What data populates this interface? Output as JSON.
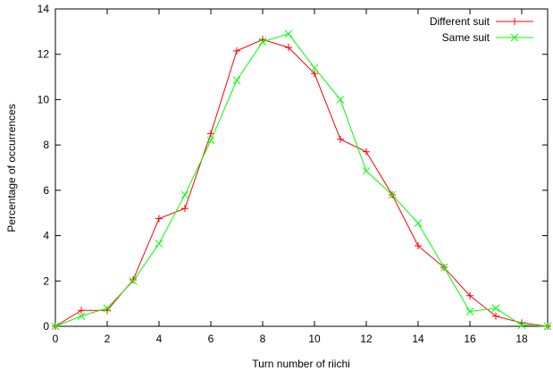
{
  "chart_data": {
    "type": "line",
    "title": "",
    "xlabel": "Turn number of riichi",
    "ylabel": "Percentage of occurrences",
    "xlim": [
      0,
      19
    ],
    "ylim": [
      0,
      14
    ],
    "x_ticks": [
      "0",
      "2",
      "4",
      "6",
      "8",
      "10",
      "12",
      "14",
      "16",
      "18"
    ],
    "y_ticks": [
      "0",
      "2",
      "4",
      "6",
      "8",
      "10",
      "12",
      "14"
    ],
    "grid": false,
    "legend_position": "top-right",
    "series": [
      {
        "name": "Different suit",
        "color": "#ff0000",
        "marker": "plus",
        "x": [
          0,
          1,
          2,
          3,
          4,
          5,
          6,
          7,
          8,
          9,
          10,
          11,
          12,
          13,
          14,
          15,
          16,
          17,
          18,
          19
        ],
        "values": [
          0,
          0.7,
          0.7,
          2.05,
          4.75,
          5.2,
          8.5,
          12.15,
          12.65,
          12.3,
          11.15,
          8.25,
          7.7,
          5.8,
          3.55,
          2.6,
          1.35,
          0.45,
          0.15,
          0.0
        ]
      },
      {
        "name": "Same suit",
        "color": "#00ff00",
        "marker": "cross",
        "x": [
          0,
          1,
          2,
          3,
          4,
          5,
          6,
          7,
          8,
          9,
          10,
          11,
          12,
          13,
          14,
          15,
          16,
          17,
          18,
          19
        ],
        "values": [
          0,
          0.45,
          0.8,
          2.0,
          3.65,
          5.8,
          8.2,
          10.85,
          12.55,
          12.9,
          11.4,
          10.0,
          6.85,
          5.8,
          4.55,
          2.6,
          0.65,
          0.8,
          0.05,
          0.0
        ]
      }
    ]
  }
}
